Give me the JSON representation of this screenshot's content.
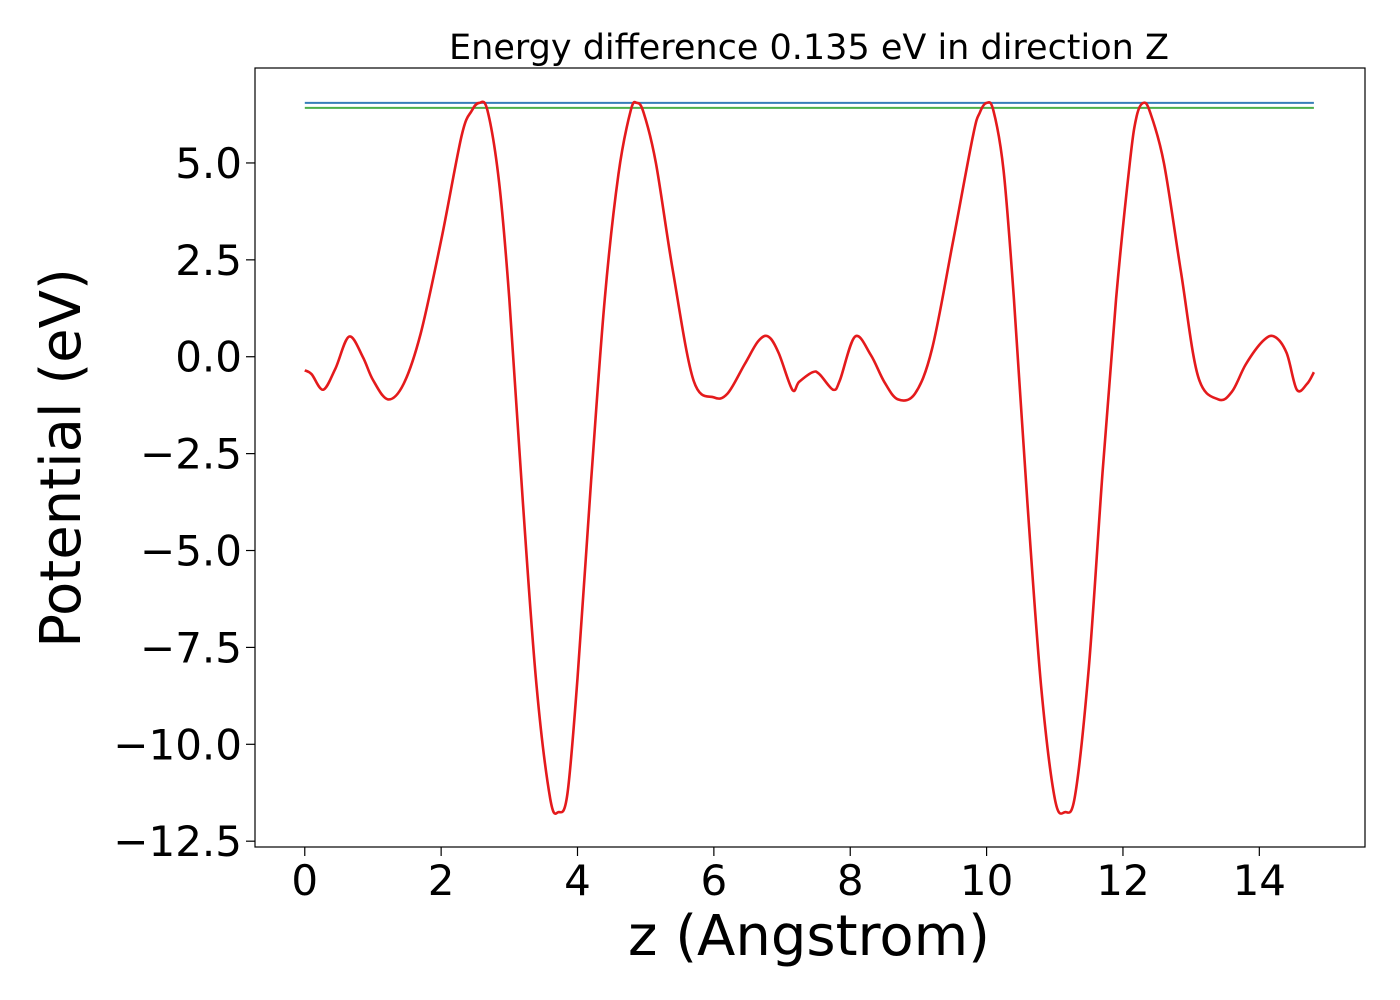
{
  "chart_data": {
    "type": "line",
    "title": "Energy difference 0.135 eV in direction Z",
    "xlabel": "z (Angstrom)",
    "ylabel": "Potential (eV)",
    "xlim": [
      -0.73,
      15.55
    ],
    "ylim": [
      -12.65,
      7.45
    ],
    "xticks": [
      0,
      2,
      4,
      6,
      8,
      10,
      12,
      14
    ],
    "xtick_labels": [
      "0",
      "2",
      "4",
      "6",
      "8",
      "10",
      "12",
      "14"
    ],
    "yticks": [
      5.0,
      2.5,
      0.0,
      -2.5,
      -5.0,
      -7.5,
      -10.0,
      -12.5
    ],
    "ytick_labels": [
      "5.0",
      "2.5",
      "0.0",
      "−2.5",
      "−5.0",
      "−7.5",
      "−10.0",
      "−12.5"
    ],
    "grid": false,
    "legend": "none",
    "colors": {
      "potential": "#e41a1c",
      "level_top": "#377eb8",
      "level_bottom": "#4daf4a"
    },
    "series": [
      {
        "key": "potential",
        "x": [
          0.0,
          0.1,
          0.27,
          0.45,
          0.65,
          0.85,
          1.0,
          1.22,
          1.45,
          1.7,
          2.0,
          2.3,
          2.45,
          2.56,
          2.68,
          2.85,
          3.0,
          3.2,
          3.4,
          3.6,
          3.72,
          3.85,
          4.0,
          4.2,
          4.4,
          4.6,
          4.78,
          4.87,
          4.97,
          5.15,
          5.4,
          5.7,
          6.0,
          6.2,
          6.45,
          6.65,
          6.8,
          6.95,
          7.15,
          7.25,
          7.45,
          7.55,
          7.75,
          7.85,
          8.07,
          8.3,
          8.5,
          8.7,
          8.95,
          9.2,
          9.5,
          9.8,
          9.9,
          10.0,
          10.1,
          10.25,
          10.4,
          10.6,
          10.8,
          11.0,
          11.15,
          11.3,
          11.5,
          11.7,
          11.9,
          12.1,
          12.2,
          12.3,
          12.4,
          12.6,
          12.85,
          13.1,
          13.4,
          13.6,
          13.8,
          14.05,
          14.22,
          14.4,
          14.55,
          14.7,
          14.8
        ],
        "y": [
          -0.35,
          -0.45,
          -0.85,
          -0.3,
          0.52,
          0.0,
          -0.6,
          -1.1,
          -0.7,
          0.6,
          3.0,
          5.7,
          6.35,
          6.55,
          6.35,
          4.5,
          1.5,
          -3.8,
          -8.5,
          -11.4,
          -11.75,
          -11.3,
          -8.3,
          -3.2,
          1.5,
          4.7,
          6.35,
          6.55,
          6.3,
          5.0,
          2.2,
          -0.6,
          -1.05,
          -0.95,
          -0.2,
          0.4,
          0.52,
          0.1,
          -0.85,
          -0.65,
          -0.4,
          -0.45,
          -0.85,
          -0.6,
          0.52,
          0.05,
          -0.65,
          -1.1,
          -0.95,
          0.2,
          2.9,
          5.7,
          6.3,
          6.55,
          6.35,
          4.8,
          1.5,
          -3.8,
          -8.5,
          -11.4,
          -11.75,
          -11.3,
          -8.0,
          -3.0,
          1.5,
          5.0,
          6.2,
          6.55,
          6.3,
          5.0,
          2.2,
          -0.5,
          -1.1,
          -0.9,
          -0.2,
          0.4,
          0.52,
          0.1,
          -0.85,
          -0.7,
          -0.4
        ]
      },
      {
        "key": "level_top",
        "x": [
          0.0,
          14.8
        ],
        "y": [
          6.55,
          6.55
        ]
      },
      {
        "key": "level_bottom",
        "x": [
          0.0,
          14.8
        ],
        "y": [
          6.42,
          6.42
        ]
      }
    ]
  }
}
